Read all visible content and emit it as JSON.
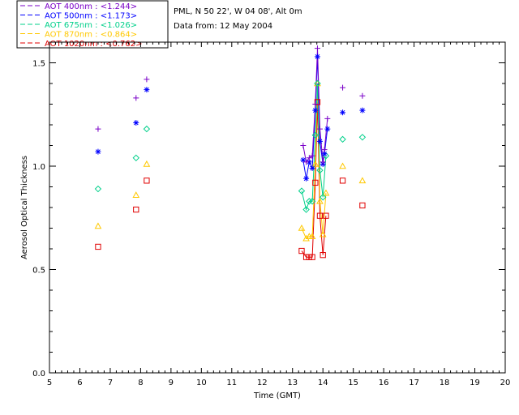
{
  "chart_data": {
    "type": "scatter",
    "xlabel": "Time (GMT)",
    "ylabel": "Aerosol Optical Thickness",
    "xlim": [
      5,
      20
    ],
    "ylim": [
      0,
      1.6
    ],
    "x_ticks": [
      "5",
      "6",
      "7",
      "8",
      "9",
      "10",
      "11",
      "12",
      "13",
      "14",
      "15",
      "16",
      "17",
      "18",
      "19",
      "20"
    ],
    "y_ticks": [
      "0.0",
      "0.5",
      "1.0",
      "1.5"
    ],
    "grid": false,
    "info_lines": [
      "PML, N 50 22', W 04 08', Alt 0m",
      "Data from: 12 May 2004"
    ],
    "legend_position": "top-left-outside",
    "series": [
      {
        "name": "AOT 400nm : <1.244>",
        "color": "#7a00c8",
        "marker": "plus",
        "line_segment": [
          13.35,
          14.15
        ],
        "x": [
          6.6,
          7.85,
          8.2,
          13.35,
          13.45,
          13.55,
          13.65,
          13.75,
          13.82,
          13.9,
          14.0,
          14.05,
          14.15,
          14.65,
          15.3
        ],
        "y": [
          1.18,
          1.33,
          1.42,
          1.1,
          1.02,
          1.04,
          1.05,
          1.3,
          1.57,
          1.18,
          1.02,
          1.08,
          1.23,
          1.38,
          1.34
        ]
      },
      {
        "name": "AOT 500nm : <1.173>",
        "color": "#0000ff",
        "marker": "asterisk",
        "line_segment": [
          13.35,
          14.15
        ],
        "x": [
          6.6,
          7.85,
          8.2,
          13.35,
          13.45,
          13.55,
          13.65,
          13.75,
          13.82,
          13.9,
          14.0,
          14.05,
          14.15,
          14.65,
          15.3
        ],
        "y": [
          1.07,
          1.21,
          1.37,
          1.03,
          0.94,
          1.02,
          0.99,
          1.27,
          1.53,
          1.12,
          1.01,
          1.06,
          1.18,
          1.26,
          1.27
        ]
      },
      {
        "name": "AOT 675nm : <1.026>",
        "color": "#00d08a",
        "marker": "diamond",
        "line_segment": [
          13.3,
          14.15
        ],
        "x": [
          6.6,
          7.85,
          8.2,
          13.3,
          13.45,
          13.55,
          13.65,
          13.75,
          13.82,
          13.9,
          14.0,
          14.1,
          14.65,
          15.3
        ],
        "y": [
          0.89,
          1.04,
          1.18,
          0.88,
          0.79,
          0.83,
          0.83,
          1.15,
          1.4,
          0.98,
          0.85,
          1.05,
          1.13,
          1.14
        ]
      },
      {
        "name": "AOT 870nm : <0.864>",
        "color": "#ffc800",
        "marker": "triangle",
        "line_segment": [
          13.3,
          14.15
        ],
        "x": [
          6.6,
          7.85,
          8.2,
          13.3,
          13.45,
          13.55,
          13.65,
          13.75,
          13.82,
          13.9,
          14.0,
          14.1,
          14.65,
          15.3
        ],
        "y": [
          0.71,
          0.86,
          1.01,
          0.7,
          0.65,
          0.66,
          0.66,
          1.01,
          1.4,
          0.83,
          0.67,
          0.87,
          1.0,
          0.93
        ]
      },
      {
        "name": "AOT 1020nm : <0.762>",
        "color": "#e00000",
        "marker": "square",
        "line_segment": [
          13.3,
          14.15
        ],
        "x": [
          6.6,
          7.85,
          8.2,
          13.3,
          13.45,
          13.55,
          13.65,
          13.75,
          13.82,
          13.9,
          14.0,
          14.1,
          14.65,
          15.3
        ],
        "y": [
          0.61,
          0.79,
          0.93,
          0.59,
          0.56,
          0.56,
          0.56,
          0.92,
          1.31,
          0.76,
          0.57,
          0.76,
          0.93,
          0.81
        ]
      }
    ]
  }
}
